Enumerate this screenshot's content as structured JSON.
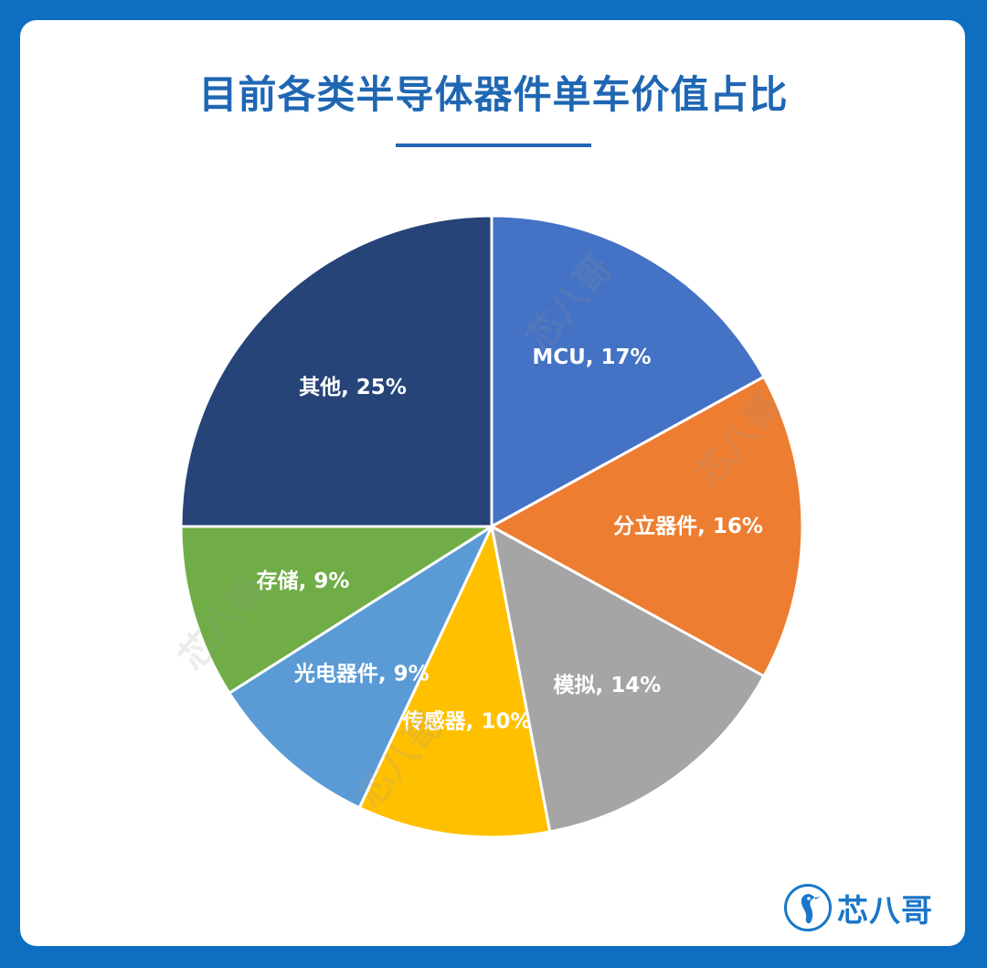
{
  "title": "目前各类半导体器件单车价值占比",
  "brand": {
    "name": "芯八哥",
    "logo_icon": "kingfisher-bird-icon",
    "color": "#1a76c9"
  },
  "watermark_text": "芯八哥",
  "colors": {
    "background": "#0d6ec2",
    "card": "#ffffff",
    "title": "#1f67b3"
  },
  "chart_data": {
    "type": "pie",
    "title": "目前各类半导体器件单车价值占比",
    "start_angle_deg": 0,
    "direction": "clockwise",
    "slices": [
      {
        "label": "MCU, 17%",
        "name": "MCU",
        "value": 17,
        "color": "#4472c4"
      },
      {
        "label": "分立器件, 16%",
        "name": "分立器件",
        "value": 16,
        "color": "#ed7d31"
      },
      {
        "label": "模拟, 14%",
        "name": "模拟",
        "value": 14,
        "color": "#a5a5a5"
      },
      {
        "label": "传感器, 10%",
        "name": "传感器",
        "value": 10,
        "color": "#ffc000"
      },
      {
        "label": "光电器件, 9%",
        "name": "光电器件",
        "value": 9,
        "color": "#5b9bd5"
      },
      {
        "label": "存储, 9%",
        "name": "存储",
        "value": 9,
        "color": "#70ad47"
      },
      {
        "label": "其他, 25%",
        "name": "其他",
        "value": 25,
        "color": "#264478"
      }
    ]
  }
}
